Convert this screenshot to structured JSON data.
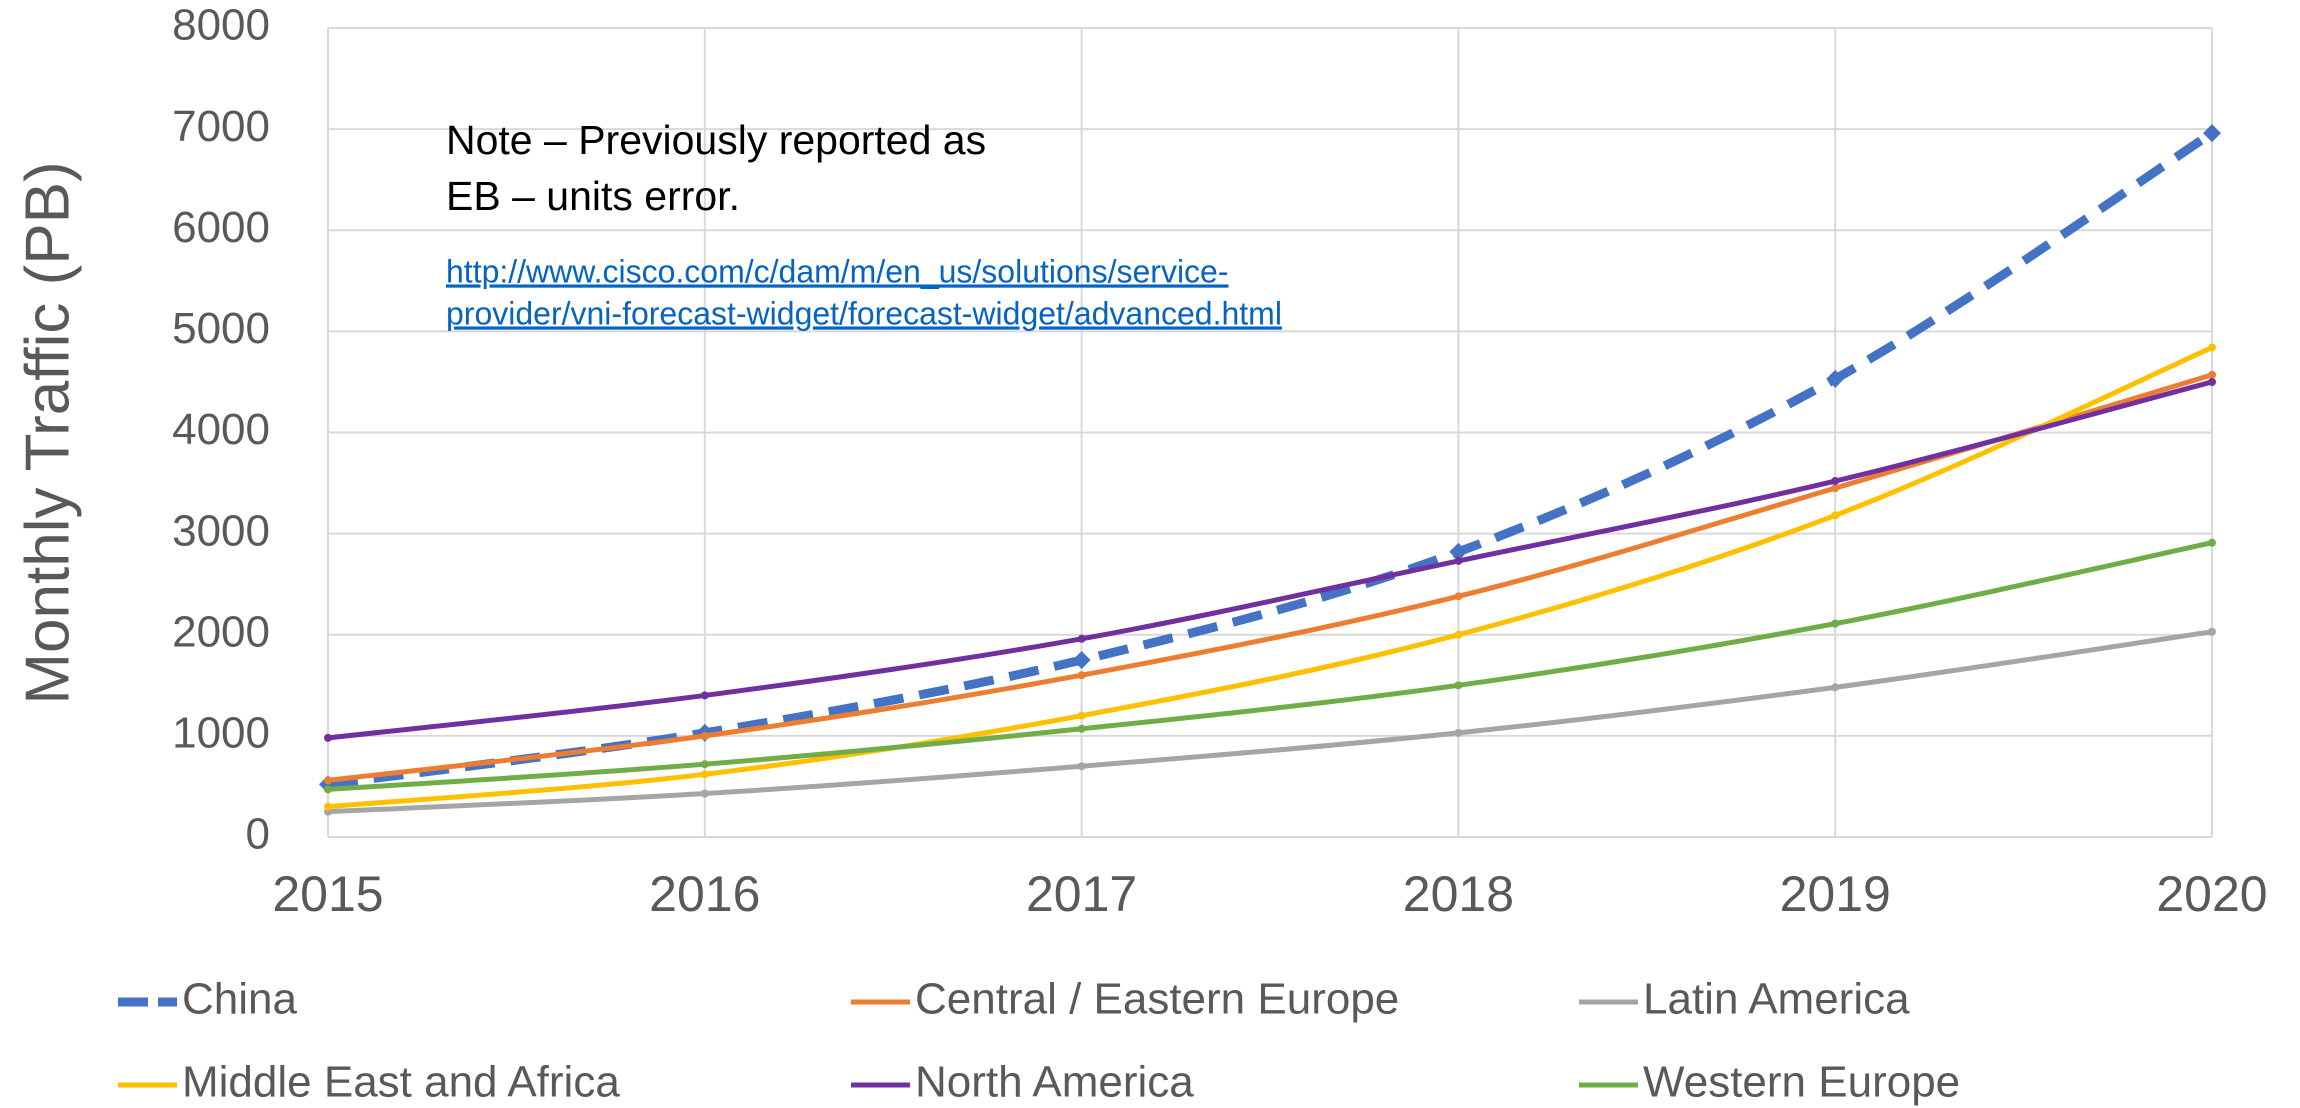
{
  "chart_data": {
    "type": "line",
    "y_label": "Monthly Traffic (PB)",
    "annotations": [
      "Note – Previously reported as",
      "EB – units error."
    ],
    "links": [
      "http://www.cisco.com/c/dam/m/en_us/solutions/service-",
      "provider/vni-forecast-widget/forecast-widget/advanced.html"
    ],
    "x": [
      2015,
      2016,
      2017,
      2018,
      2019,
      2020
    ],
    "xlim": [
      2015,
      2020
    ],
    "xticks": [
      2015,
      2016,
      2017,
      2018,
      2019,
      2020
    ],
    "ylim": [
      0,
      8000
    ],
    "yticks": [
      0,
      1000,
      2000,
      3000,
      4000,
      5000,
      6000,
      7000,
      8000
    ],
    "grid": true,
    "series": [
      {
        "name": "China",
        "color": "#4472c4",
        "dashed": true,
        "values": [
          520,
          1030,
          1750,
          2820,
          4530,
          6960
        ]
      },
      {
        "name": "Central / Eastern Europe",
        "color": "#ed7d31",
        "values": [
          560,
          1000,
          1600,
          2380,
          3450,
          4570
        ]
      },
      {
        "name": "Latin America",
        "color": "#a5a5a5",
        "values": [
          250,
          430,
          700,
          1030,
          1480,
          2030
        ]
      },
      {
        "name": "Middle East and Africa",
        "color": "#ffc000",
        "values": [
          300,
          620,
          1200,
          2000,
          3180,
          4840
        ]
      },
      {
        "name": "North America",
        "color": "#7030a0",
        "values": [
          980,
          1400,
          1960,
          2730,
          3520,
          4500
        ]
      },
      {
        "name": "Western Europe",
        "color": "#70ad47",
        "values": [
          470,
          720,
          1070,
          1500,
          2110,
          2910
        ]
      }
    ]
  }
}
